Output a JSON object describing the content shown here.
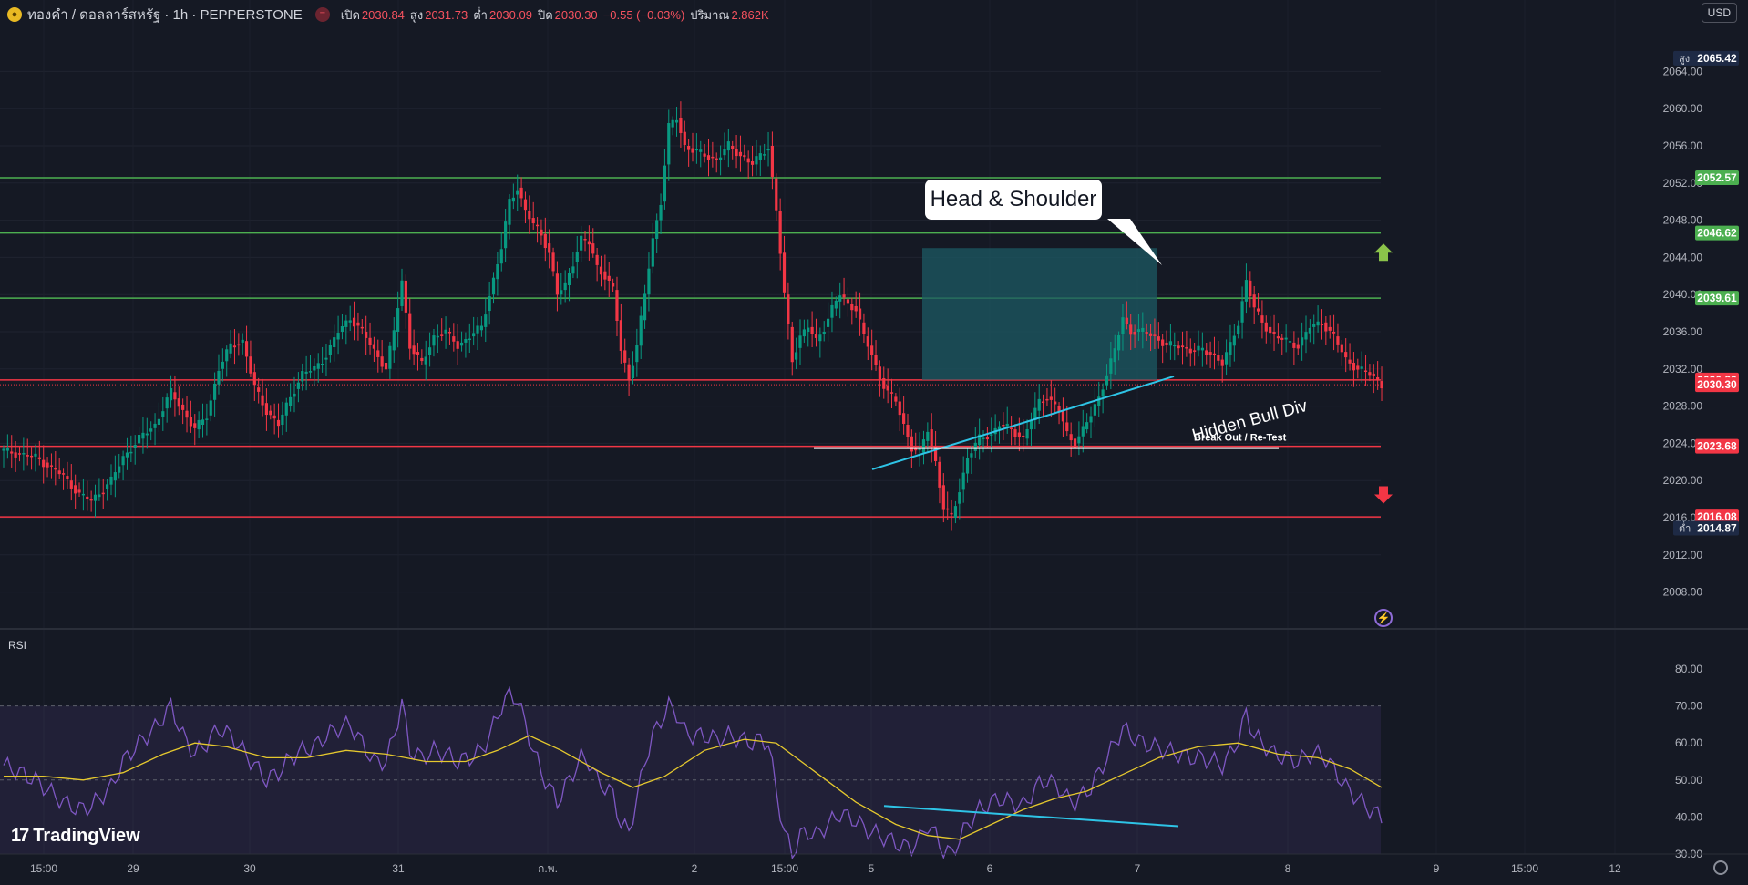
{
  "header": {
    "symbol_icon": "gold-coin-icon",
    "symbol": "ทองคำ / ดอลลาร์สหรัฐ · 1h · PEPPERSTONE",
    "market_icon": "market-closed-icon",
    "open_label": "เปิด",
    "open_value": "2030.84",
    "high_label": "สูง",
    "high_value": "2031.73",
    "low_label": "ต่ำ",
    "low_value": "2030.09",
    "close_label": "ปิด",
    "close_value": "2030.30",
    "change_value": "−0.55 (−0.03%)",
    "volume_label": "ปริมาณ",
    "volume_value": "2.862K"
  },
  "currency": "USD",
  "rsi_label": "RSI",
  "brand": {
    "logo_mark": "17",
    "name": "TradingView"
  },
  "annotations": {
    "callout": "Head & Shoulder",
    "diagonal_label": "Hidden Bull Div",
    "retest_label": "Break Out / Re-Test"
  },
  "colors": {
    "background": "#151924",
    "up": "#089981",
    "down": "#f23645",
    "support": "#f23645",
    "resistance": "#4caf50",
    "trendline": "#2ec4e6",
    "rsi": "#7e57c2",
    "rsi_ma": "#e5c82e",
    "box": "#1c5a63"
  },
  "chart_data": {
    "type": "candlestick",
    "y_axis": {
      "ylim": [
        2006,
        2066
      ],
      "ticks": [
        "2064.00",
        "2060.00",
        "2056.00",
        "2052.00",
        "2048.00",
        "2044.00",
        "2040.00",
        "2036.00",
        "2032.00",
        "2028.00",
        "2024.00",
        "2020.00",
        "2016.00",
        "2012.00",
        "2008.00"
      ]
    },
    "x_axis": {
      "ticks": [
        "15:00",
        "29",
        "30",
        "31",
        "ก.พ.",
        "2",
        "15:00",
        "5",
        "6",
        "7",
        "8",
        "9",
        "15:00",
        "12"
      ]
    },
    "high_marker": {
      "label": "สูง",
      "value": "2065.42"
    },
    "low_marker": {
      "label": "ต่ำ",
      "value": "2014.87"
    },
    "levels": [
      {
        "value": 2052.57,
        "label": "2052.57",
        "kind": "resistance"
      },
      {
        "value": 2046.62,
        "label": "2046.62",
        "kind": "resistance"
      },
      {
        "value": 2039.61,
        "label": "2039.61",
        "kind": "resistance"
      },
      {
        "value": 2030.82,
        "label": "2030.82",
        "kind": "support"
      },
      {
        "value": 2030.3,
        "label": "2030.30",
        "kind": "last-price"
      },
      {
        "value": 2023.68,
        "label": "2023.68",
        "kind": "support"
      },
      {
        "value": 2016.08,
        "label": "2016.08",
        "kind": "support"
      }
    ],
    "price_path": [
      [
        0,
        2023.2
      ],
      [
        8,
        2022.5
      ],
      [
        15,
        2020.5
      ],
      [
        19,
        2018.5
      ],
      [
        22,
        2017.8
      ],
      [
        27,
        2020.0
      ],
      [
        30,
        2022.5
      ],
      [
        34,
        2024.5
      ],
      [
        38,
        2026.0
      ],
      [
        42,
        2029.5
      ],
      [
        45,
        2027.5
      ],
      [
        48,
        2025.5
      ],
      [
        51,
        2027.0
      ],
      [
        54,
        2032.0
      ],
      [
        57,
        2034.5
      ],
      [
        60,
        2035.0
      ],
      [
        63,
        2030.0
      ],
      [
        66,
        2027.5
      ],
      [
        69,
        2026.0
      ],
      [
        72,
        2029.0
      ],
      [
        75,
        2031.5
      ],
      [
        78,
        2032.0
      ],
      [
        81,
        2033.5
      ],
      [
        84,
        2036.0
      ],
      [
        87,
        2037.5
      ],
      [
        90,
        2036.0
      ],
      [
        93,
        2034.0
      ],
      [
        96,
        2032.0
      ],
      [
        98,
        2036.0
      ],
      [
        100,
        2041.5
      ],
      [
        102,
        2034.5
      ],
      [
        105,
        2032.5
      ],
      [
        108,
        2035.5
      ],
      [
        111,
        2036.0
      ],
      [
        114,
        2034.5
      ],
      [
        117,
        2035.5
      ],
      [
        120,
        2036.5
      ],
      [
        122,
        2040.0
      ],
      [
        125,
        2045.0
      ],
      [
        127,
        2050.0
      ],
      [
        129,
        2051.5
      ],
      [
        131,
        2049.0
      ],
      [
        133,
        2047.5
      ],
      [
        135,
        2046.5
      ],
      [
        137,
        2044.5
      ],
      [
        139,
        2040.0
      ],
      [
        141,
        2041.0
      ],
      [
        143,
        2043.5
      ],
      [
        145,
        2046.0
      ],
      [
        147,
        2045.5
      ],
      [
        149,
        2043.0
      ],
      [
        151,
        2042.0
      ],
      [
        153,
        2040.5
      ],
      [
        155,
        2034.0
      ],
      [
        157,
        2031.0
      ],
      [
        159,
        2034.5
      ],
      [
        161,
        2040.0
      ],
      [
        163,
        2046.0
      ],
      [
        165,
        2050.0
      ],
      [
        167,
        2058.0
      ],
      [
        169,
        2059.0
      ],
      [
        171,
        2056.0
      ],
      [
        173,
        2055.5
      ],
      [
        176,
        2055.0
      ],
      [
        179,
        2054.5
      ],
      [
        182,
        2056.0
      ],
      [
        185,
        2055.0
      ],
      [
        188,
        2054.0
      ],
      [
        190,
        2055.0
      ],
      [
        192,
        2056.0
      ],
      [
        194,
        2049.0
      ],
      [
        196,
        2040.0
      ],
      [
        198,
        2033.0
      ],
      [
        200,
        2035.5
      ],
      [
        202,
        2036.5
      ],
      [
        204,
        2035.0
      ],
      [
        206,
        2036.5
      ],
      [
        208,
        2038.5
      ],
      [
        210,
        2040.0
      ],
      [
        212,
        2039.0
      ],
      [
        214,
        2038.5
      ],
      [
        216,
        2035.5
      ],
      [
        218,
        2033.5
      ],
      [
        220,
        2031.0
      ],
      [
        222,
        2029.5
      ],
      [
        224,
        2028.5
      ],
      [
        226,
        2026.0
      ],
      [
        228,
        2023.5
      ],
      [
        230,
        2023.0
      ],
      [
        232,
        2025.5
      ],
      [
        234,
        2022.0
      ],
      [
        236,
        2017.0
      ],
      [
        238,
        2016.0
      ],
      [
        240,
        2019.0
      ],
      [
        242,
        2022.5
      ],
      [
        245,
        2024.5
      ],
      [
        248,
        2025.0
      ],
      [
        250,
        2026.0
      ],
      [
        253,
        2025.5
      ],
      [
        256,
        2024.5
      ],
      [
        258,
        2026.5
      ],
      [
        260,
        2028.5
      ],
      [
        262,
        2029.0
      ],
      [
        265,
        2027.5
      ],
      [
        267,
        2025.0
      ],
      [
        269,
        2024.0
      ],
      [
        271,
        2025.5
      ],
      [
        273,
        2027.0
      ],
      [
        275,
        2029.0
      ],
      [
        277,
        2031.5
      ],
      [
        279,
        2034.0
      ],
      [
        281,
        2037.5
      ],
      [
        283,
        2036.0
      ],
      [
        286,
        2036.0
      ],
      [
        289,
        2035.5
      ],
      [
        292,
        2034.5
      ],
      [
        295,
        2034.5
      ],
      [
        298,
        2034.0
      ],
      [
        301,
        2034.0
      ],
      [
        304,
        2033.5
      ],
      [
        306,
        2032.5
      ],
      [
        308,
        2034.5
      ],
      [
        310,
        2037.0
      ],
      [
        312,
        2041.5
      ],
      [
        314,
        2038.5
      ],
      [
        316,
        2037.0
      ],
      [
        319,
        2035.5
      ],
      [
        322,
        2035.0
      ],
      [
        325,
        2034.5
      ],
      [
        328,
        2036.5
      ],
      [
        331,
        2037.0
      ],
      [
        334,
        2035.5
      ],
      [
        337,
        2033.0
      ],
      [
        340,
        2032.0
      ],
      [
        343,
        2031.5
      ],
      [
        346,
        2030.3
      ]
    ],
    "rsi": {
      "label": "RSI",
      "ylim": [
        30,
        80
      ],
      "ticks": [
        "80.00",
        "70.00",
        "60.00",
        "50.00",
        "40.00",
        "30.00"
      ],
      "band": [
        30,
        70
      ],
      "rsi_path": [
        [
          0,
          54
        ],
        [
          8,
          50
        ],
        [
          15,
          44
        ],
        [
          19,
          42
        ],
        [
          22,
          43
        ],
        [
          27,
          48
        ],
        [
          30,
          55
        ],
        [
          34,
          60
        ],
        [
          38,
          64
        ],
        [
          42,
          70
        ],
        [
          45,
          62
        ],
        [
          48,
          57
        ],
        [
          51,
          60
        ],
        [
          54,
          64
        ],
        [
          57,
          62
        ],
        [
          60,
          58
        ],
        [
          63,
          54
        ],
        [
          66,
          50
        ],
        [
          69,
          52
        ],
        [
          72,
          56
        ],
        [
          75,
          58
        ],
        [
          78,
          59
        ],
        [
          81,
          62
        ],
        [
          84,
          64
        ],
        [
          87,
          65
        ],
        [
          90,
          60
        ],
        [
          93,
          55
        ],
        [
          96,
          55
        ],
        [
          98,
          62
        ],
        [
          100,
          71
        ],
        [
          102,
          58
        ],
        [
          105,
          56
        ],
        [
          108,
          58
        ],
        [
          111,
          57
        ],
        [
          114,
          55
        ],
        [
          117,
          56
        ],
        [
          120,
          58
        ],
        [
          122,
          62
        ],
        [
          125,
          70
        ],
        [
          127,
          73
        ],
        [
          129,
          72
        ],
        [
          131,
          65
        ],
        [
          133,
          58
        ],
        [
          135,
          52
        ],
        [
          137,
          48
        ],
        [
          139,
          44
        ],
        [
          141,
          48
        ],
        [
          143,
          52
        ],
        [
          145,
          56
        ],
        [
          147,
          55
        ],
        [
          149,
          50
        ],
        [
          151,
          48
        ],
        [
          153,
          46
        ],
        [
          155,
          38
        ],
        [
          157,
          36
        ],
        [
          159,
          45
        ],
        [
          161,
          55
        ],
        [
          163,
          62
        ],
        [
          165,
          66
        ],
        [
          167,
          70
        ],
        [
          169,
          68
        ],
        [
          171,
          63
        ],
        [
          173,
          62
        ],
        [
          176,
          62
        ],
        [
          179,
          61
        ],
        [
          182,
          62
        ],
        [
          185,
          61
        ],
        [
          188,
          60
        ],
        [
          190,
          61
        ],
        [
          192,
          60
        ],
        [
          194,
          47
        ],
        [
          196,
          36
        ],
        [
          198,
          30
        ],
        [
          200,
          35
        ],
        [
          202,
          36
        ],
        [
          204,
          35
        ],
        [
          206,
          37
        ],
        [
          208,
          39
        ],
        [
          210,
          41
        ],
        [
          212,
          40
        ],
        [
          214,
          39
        ],
        [
          216,
          37
        ],
        [
          218,
          36
        ],
        [
          220,
          35
        ],
        [
          222,
          34
        ],
        [
          224,
          33
        ],
        [
          226,
          32
        ],
        [
          228,
          32
        ],
        [
          230,
          34
        ],
        [
          232,
          38
        ],
        [
          234,
          35
        ],
        [
          236,
          31
        ],
        [
          238,
          30
        ],
        [
          240,
          34
        ],
        [
          242,
          38
        ],
        [
          245,
          42
        ],
        [
          248,
          44
        ],
        [
          250,
          45
        ],
        [
          253,
          44
        ],
        [
          256,
          43
        ],
        [
          258,
          46
        ],
        [
          260,
          49
        ],
        [
          262,
          50
        ],
        [
          265,
          48
        ],
        [
          267,
          45
        ],
        [
          269,
          44
        ],
        [
          271,
          46
        ],
        [
          273,
          48
        ],
        [
          275,
          52
        ],
        [
          277,
          56
        ],
        [
          279,
          60
        ],
        [
          281,
          64
        ],
        [
          283,
          62
        ],
        [
          286,
          60
        ],
        [
          289,
          59
        ],
        [
          292,
          58
        ],
        [
          295,
          57
        ],
        [
          298,
          56
        ],
        [
          301,
          56
        ],
        [
          304,
          55
        ],
        [
          306,
          54
        ],
        [
          308,
          57
        ],
        [
          310,
          61
        ],
        [
          312,
          68
        ],
        [
          314,
          62
        ],
        [
          316,
          60
        ],
        [
          319,
          57
        ],
        [
          322,
          56
        ],
        [
          325,
          55
        ],
        [
          328,
          57
        ],
        [
          331,
          57
        ],
        [
          334,
          53
        ],
        [
          337,
          48
        ],
        [
          340,
          45
        ],
        [
          343,
          42
        ],
        [
          346,
          40
        ]
      ],
      "ma_path": [
        [
          0,
          51
        ],
        [
          10,
          51
        ],
        [
          20,
          50
        ],
        [
          30,
          52
        ],
        [
          40,
          57
        ],
        [
          48,
          60
        ],
        [
          56,
          59
        ],
        [
          66,
          56
        ],
        [
          76,
          56
        ],
        [
          86,
          58
        ],
        [
          96,
          57
        ],
        [
          106,
          55
        ],
        [
          116,
          55
        ],
        [
          124,
          58
        ],
        [
          132,
          62
        ],
        [
          140,
          58
        ],
        [
          150,
          52
        ],
        [
          158,
          48
        ],
        [
          166,
          51
        ],
        [
          176,
          58
        ],
        [
          186,
          61
        ],
        [
          194,
          60
        ],
        [
          204,
          52
        ],
        [
          214,
          44
        ],
        [
          224,
          38
        ],
        [
          232,
          35
        ],
        [
          240,
          34
        ],
        [
          248,
          38
        ],
        [
          256,
          42
        ],
        [
          264,
          45
        ],
        [
          272,
          47
        ],
        [
          280,
          51
        ],
        [
          290,
          56
        ],
        [
          300,
          59
        ],
        [
          310,
          60
        ],
        [
          320,
          57
        ],
        [
          330,
          56
        ],
        [
          338,
          53
        ],
        [
          346,
          48
        ]
      ]
    },
    "drawings": {
      "box": {
        "x0": 1012,
        "x1": 1269,
        "y_top": 2045.0,
        "y_bottom": 2030.82
      },
      "up_arrow_at": 2044.5,
      "down_arrow_at": 2018.5,
      "trendline": {
        "from": [
          957,
          2021.2
        ],
        "to": [
          1288,
          2031.2
        ]
      },
      "retest_line": {
        "x0": 893,
        "x1": 1403,
        "value": 2023.68
      },
      "rsi_divergence": {
        "from": [
          970,
          43.0
        ],
        "to": [
          1293,
          37.5
        ]
      }
    }
  }
}
